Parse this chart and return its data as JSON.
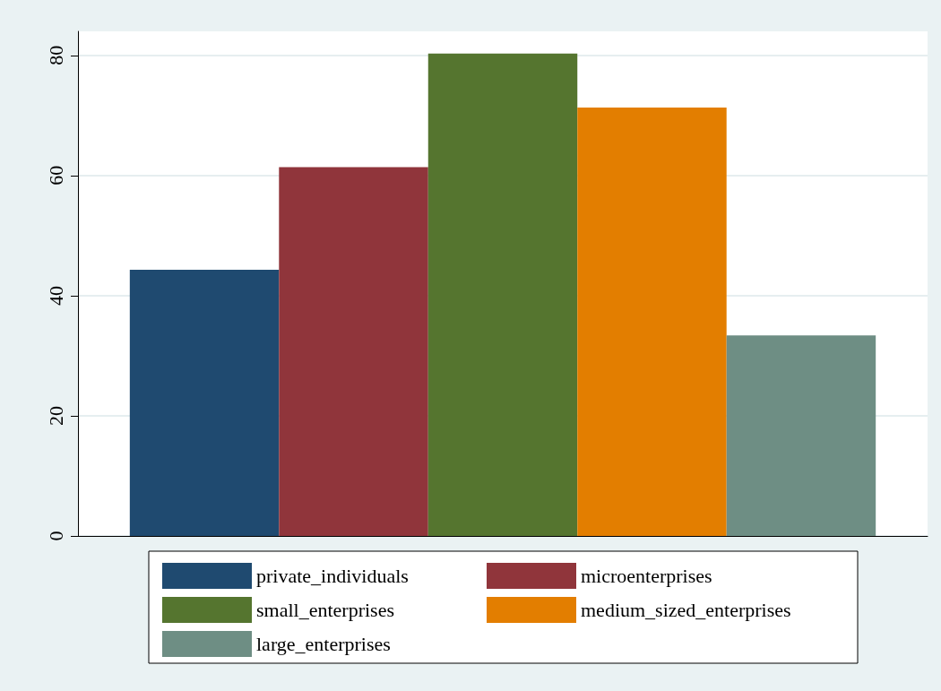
{
  "chart_data": {
    "type": "bar",
    "categories": [
      null
    ],
    "series": [
      {
        "name": "private_individuals",
        "color": "#1f4a70",
        "values": [
          44.3
        ]
      },
      {
        "name": "microenterprises",
        "color": "#90353b",
        "values": [
          61.4
        ]
      },
      {
        "name": "small_enterprises",
        "color": "#55752f",
        "values": [
          80.3
        ]
      },
      {
        "name": "medium_sized_enterprises",
        "color": "#e37e00",
        "values": [
          71.3
        ]
      },
      {
        "name": "large_enterprises",
        "color": "#6e8e84",
        "values": [
          33.4
        ]
      }
    ],
    "ylim": [
      0,
      84
    ],
    "yticks": [
      0,
      20,
      40,
      60,
      80
    ],
    "grid": "y",
    "legend": "bottom"
  }
}
